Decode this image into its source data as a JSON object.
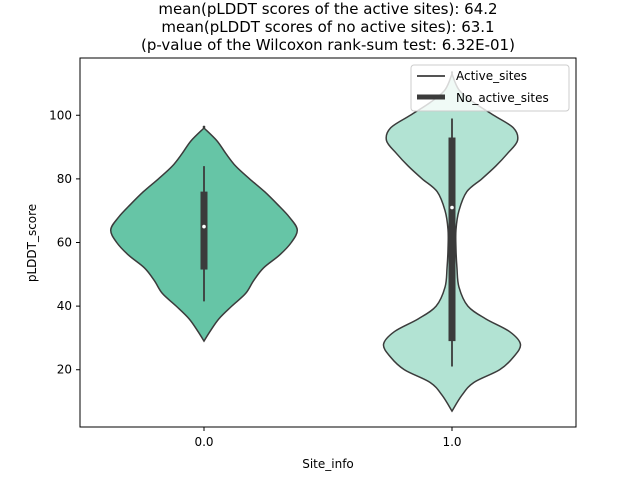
{
  "chart_data": {
    "type": "violin",
    "title_lines": [
      "mean(pLDDT scores of the active sites): 64.2",
      "mean(pLDDT scores of no active sites): 63.1",
      "(p-value of the Wilcoxon rank-sum test: 6.32E-01)"
    ],
    "xlabel": "Site_info",
    "ylabel": "pLDDT_score",
    "categories": [
      "0.0",
      "1.0"
    ],
    "ylim": [
      2,
      118
    ],
    "yticks": [
      20,
      40,
      60,
      80,
      100
    ],
    "grid": false,
    "legend": {
      "placement": "top-right",
      "entries": [
        "Active_sites",
        "No_active_sites"
      ]
    },
    "violins": [
      {
        "category": "0.0",
        "color": "#66c5a6",
        "median": 65,
        "q1": 51.5,
        "q3": 76,
        "whisker_low": 41.5,
        "whisker_high": 84,
        "range": [
          29,
          96
        ],
        "density": [
          [
            29,
            0
          ],
          [
            32,
            0.06
          ],
          [
            36,
            0.15
          ],
          [
            40,
            0.28
          ],
          [
            44,
            0.42
          ],
          [
            48,
            0.5
          ],
          [
            52,
            0.6
          ],
          [
            56,
            0.76
          ],
          [
            60,
            0.88
          ],
          [
            64,
            0.94
          ],
          [
            68,
            0.86
          ],
          [
            72,
            0.74
          ],
          [
            76,
            0.61
          ],
          [
            80,
            0.46
          ],
          [
            84,
            0.32
          ],
          [
            88,
            0.22
          ],
          [
            92,
            0.13
          ],
          [
            96,
            0
          ]
        ]
      },
      {
        "category": "1.0",
        "color": "#b2e3d3",
        "median": 71,
        "q1": 29,
        "q3": 93,
        "whisker_low": 21,
        "whisker_high": 99,
        "range": [
          7,
          113
        ],
        "density": [
          [
            7,
            0
          ],
          [
            12,
            0.1
          ],
          [
            16,
            0.22
          ],
          [
            20,
            0.48
          ],
          [
            24,
            0.62
          ],
          [
            28,
            0.69
          ],
          [
            32,
            0.58
          ],
          [
            36,
            0.34
          ],
          [
            40,
            0.16
          ],
          [
            46,
            0.07
          ],
          [
            52,
            0.05
          ],
          [
            58,
            0.04
          ],
          [
            64,
            0.04
          ],
          [
            70,
            0.07
          ],
          [
            76,
            0.15
          ],
          [
            80,
            0.3
          ],
          [
            84,
            0.44
          ],
          [
            88,
            0.56
          ],
          [
            92,
            0.66
          ],
          [
            96,
            0.62
          ],
          [
            100,
            0.42
          ],
          [
            104,
            0.22
          ],
          [
            108,
            0.07
          ],
          [
            113,
            0
          ]
        ]
      }
    ]
  },
  "colors": {
    "outline": "#3b3b3b",
    "box": "#3b3b3b",
    "median_dot": "#ffffff",
    "axes": "#000000"
  }
}
